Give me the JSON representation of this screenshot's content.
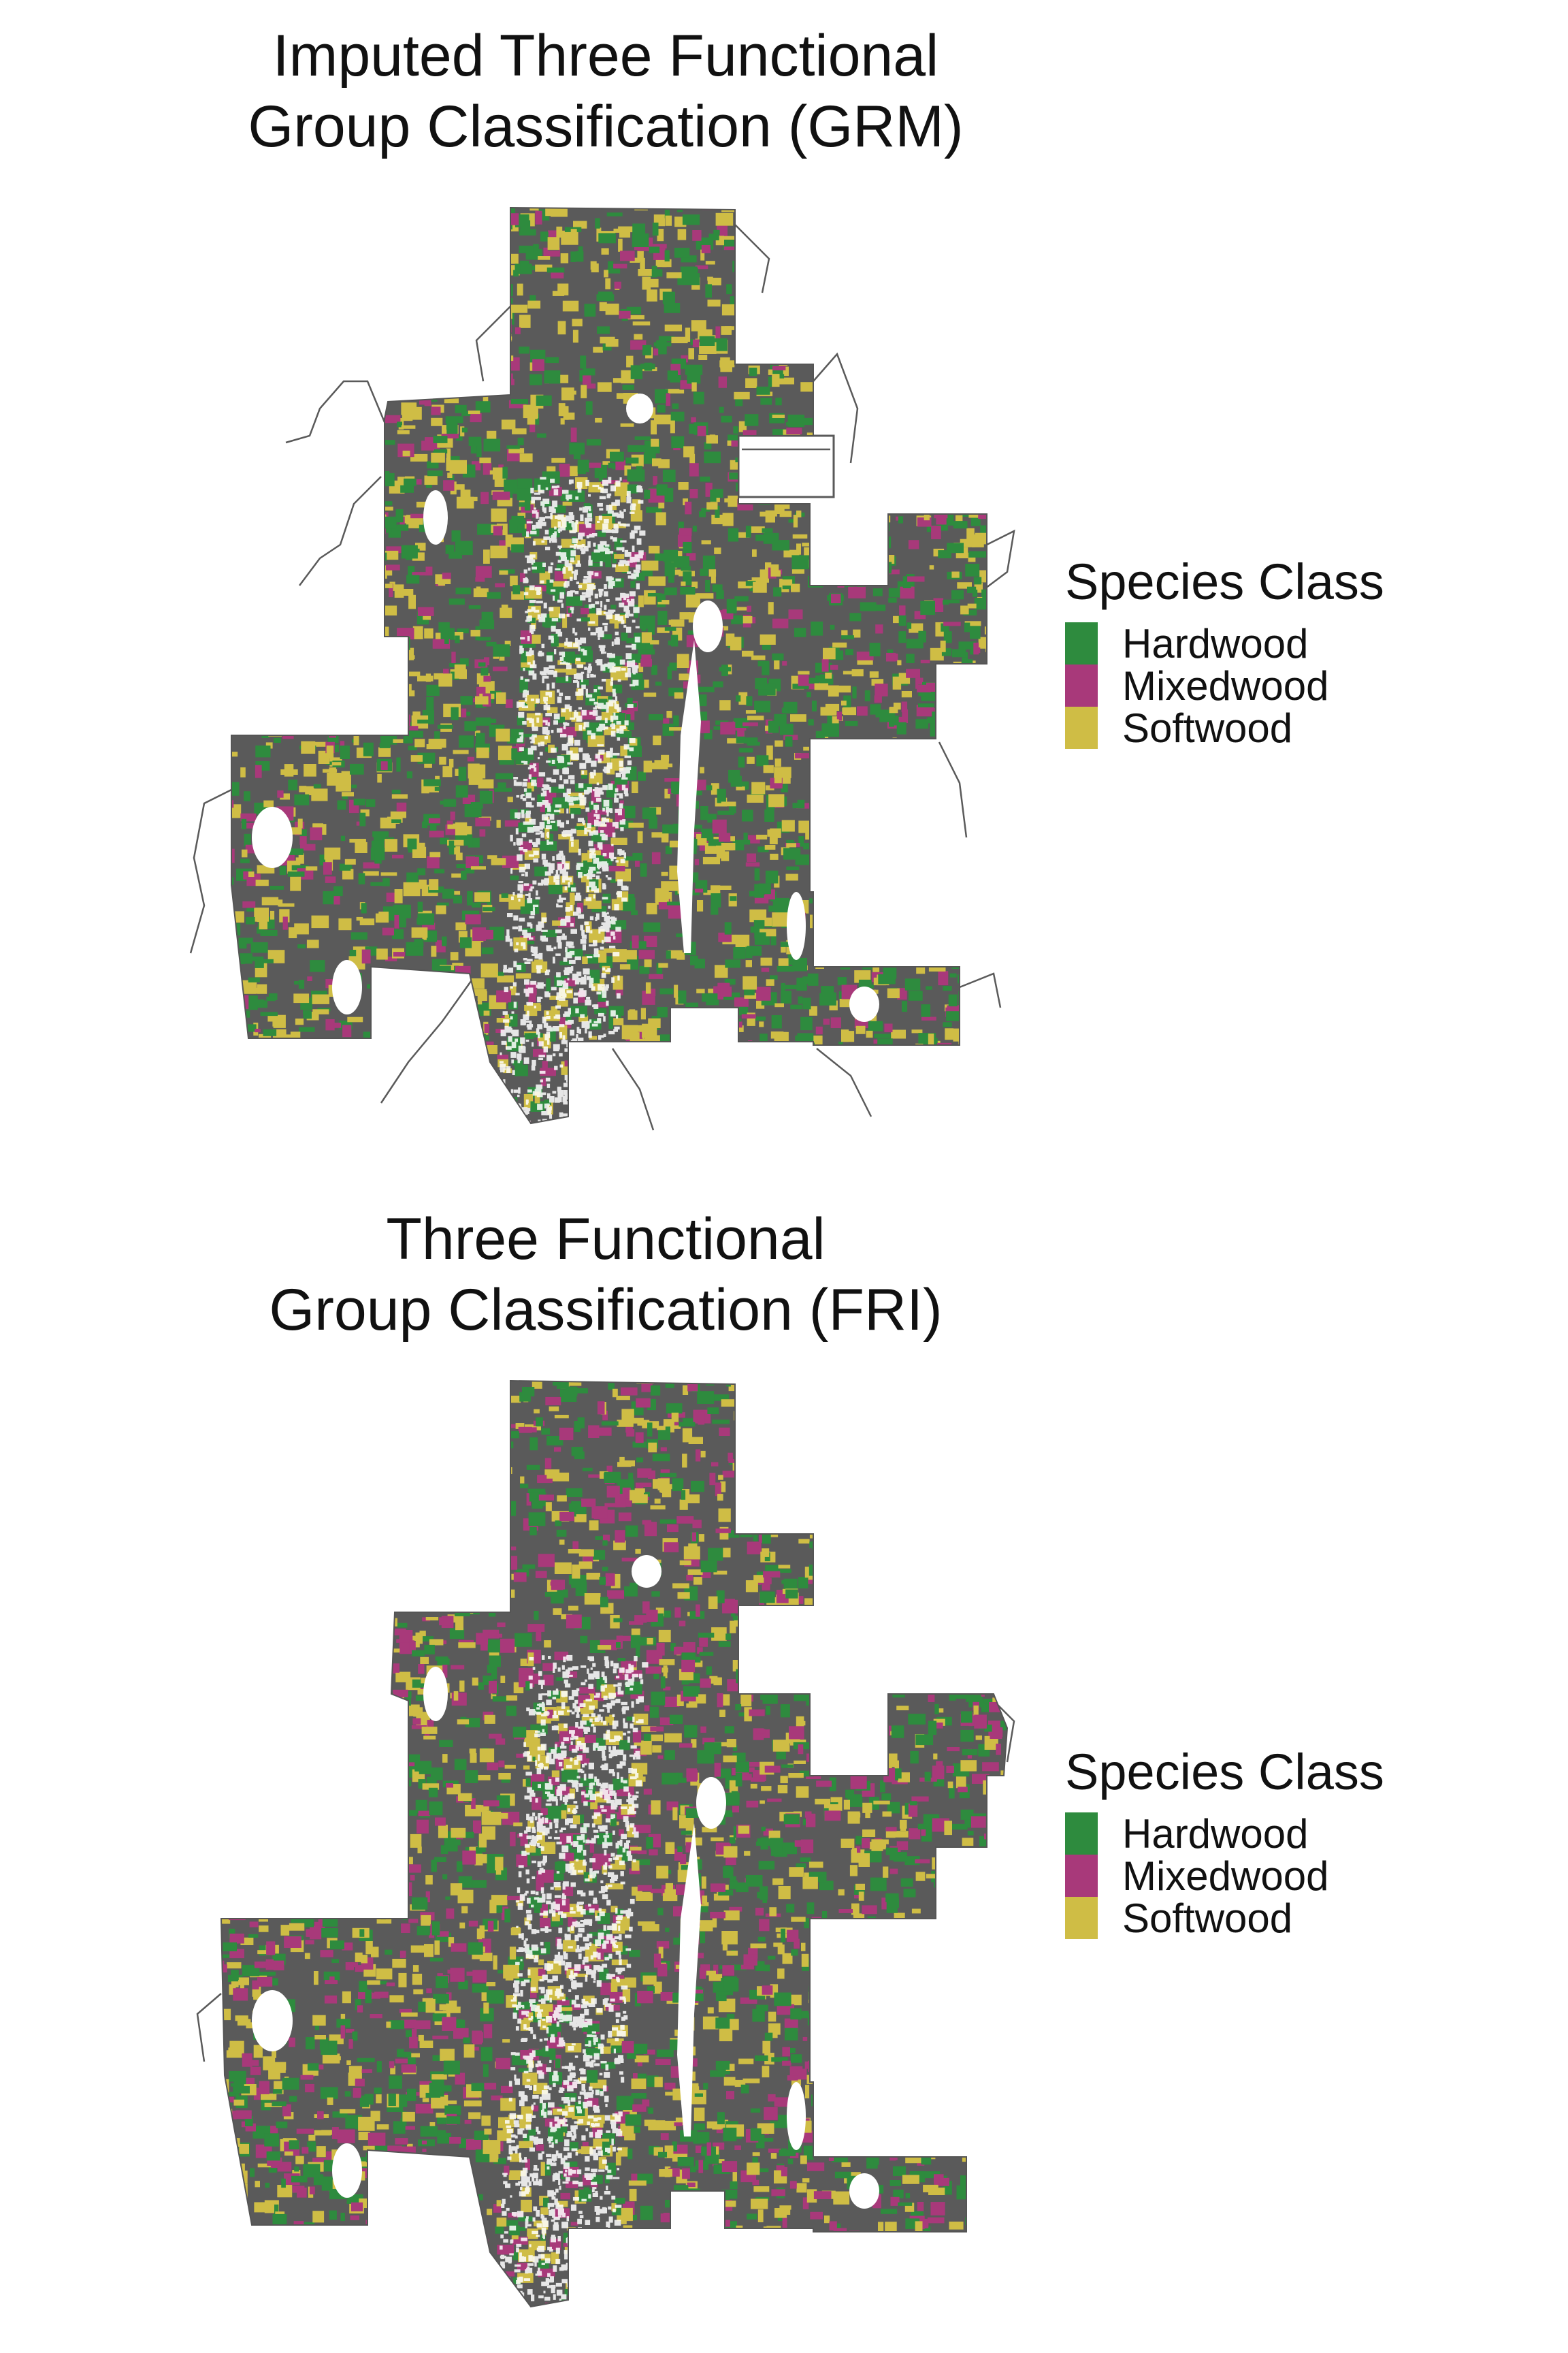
{
  "maps": [
    {
      "title_line1": "Imputed Three Functional",
      "title_line2": "Group Classification (GRM)",
      "mixedwood_share": 0.16,
      "softwood_share": 0.42
    },
    {
      "title_line1": "Three Functional",
      "title_line2": "Group Classification (FRI)",
      "mixedwood_share": 0.3,
      "softwood_share": 0.36
    }
  ],
  "legend": {
    "title": "Species Class",
    "items": [
      {
        "label": "Hardwood",
        "color": "#2e8b3e"
      },
      {
        "label": "Mixedwood",
        "color": "#a8397a"
      },
      {
        "label": "Softwood",
        "color": "#cfbd45"
      }
    ]
  },
  "colors": {
    "road": "#5a5a5a",
    "outline": "#555555",
    "background": "#ffffff"
  }
}
